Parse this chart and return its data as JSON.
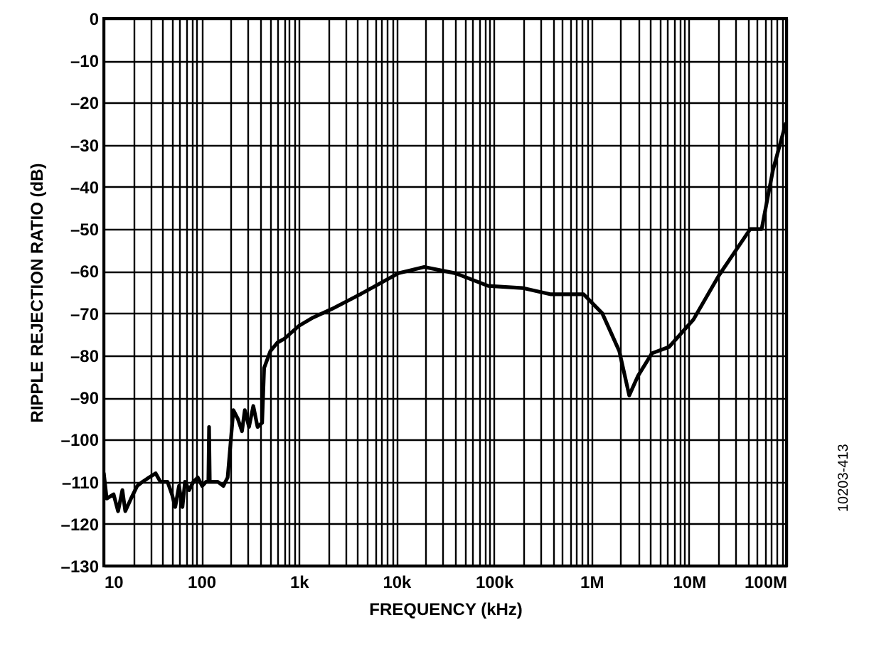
{
  "chart_data": {
    "type": "line",
    "xlabel": "FREQUENCY (kHz)",
    "ylabel": "RIPPLE REJECTION RATIO (dB)",
    "annotations": [
      "10203-413"
    ],
    "log": "x",
    "grid": true,
    "marker": "none",
    "line_style": "solid",
    "xlim": [
      10,
      100000000
    ],
    "ylim": [
      -130,
      0
    ],
    "xticks": [
      {
        "value": 10,
        "label": "10"
      },
      {
        "value": 20,
        "label": null
      },
      {
        "value": 30,
        "label": null
      },
      {
        "value": 40,
        "label": null
      },
      {
        "value": 50,
        "label": null
      },
      {
        "value": 60,
        "label": null
      },
      {
        "value": 70,
        "label": null
      },
      {
        "value": 80,
        "label": null
      },
      {
        "value": 90,
        "label": null
      },
      {
        "value": 100,
        "label": "100"
      },
      {
        "value": 200,
        "label": null
      },
      {
        "value": 300,
        "label": null
      },
      {
        "value": 400,
        "label": null
      },
      {
        "value": 500,
        "label": null
      },
      {
        "value": 600,
        "label": null
      },
      {
        "value": 700,
        "label": null
      },
      {
        "value": 800,
        "label": null
      },
      {
        "value": 900,
        "label": null
      },
      {
        "value": 1000,
        "label": "1k"
      },
      {
        "value": 2000,
        "label": null
      },
      {
        "value": 3000,
        "label": null
      },
      {
        "value": 4000,
        "label": null
      },
      {
        "value": 5000,
        "label": null
      },
      {
        "value": 6000,
        "label": null
      },
      {
        "value": 7000,
        "label": null
      },
      {
        "value": 8000,
        "label": null
      },
      {
        "value": 9000,
        "label": null
      },
      {
        "value": 10000,
        "label": "10k"
      },
      {
        "value": 20000,
        "label": null
      },
      {
        "value": 30000,
        "label": null
      },
      {
        "value": 40000,
        "label": null
      },
      {
        "value": 50000,
        "label": null
      },
      {
        "value": 60000,
        "label": null
      },
      {
        "value": 70000,
        "label": null
      },
      {
        "value": 80000,
        "label": null
      },
      {
        "value": 90000,
        "label": null
      },
      {
        "value": 100000,
        "label": "100k"
      },
      {
        "value": 200000,
        "label": null
      },
      {
        "value": 300000,
        "label": null
      },
      {
        "value": 400000,
        "label": null
      },
      {
        "value": 500000,
        "label": null
      },
      {
        "value": 600000,
        "label": null
      },
      {
        "value": 700000,
        "label": null
      },
      {
        "value": 800000,
        "label": null
      },
      {
        "value": 900000,
        "label": null
      },
      {
        "value": 1000000,
        "label": "1M"
      },
      {
        "value": 2000000,
        "label": null
      },
      {
        "value": 3000000,
        "label": null
      },
      {
        "value": 4000000,
        "label": null
      },
      {
        "value": 5000000,
        "label": null
      },
      {
        "value": 6000000,
        "label": null
      },
      {
        "value": 7000000,
        "label": null
      },
      {
        "value": 8000000,
        "label": null
      },
      {
        "value": 9000000,
        "label": null
      },
      {
        "value": 10000000,
        "label": "10M"
      },
      {
        "value": 20000000,
        "label": null
      },
      {
        "value": 30000000,
        "label": null
      },
      {
        "value": 40000000,
        "label": null
      },
      {
        "value": 50000000,
        "label": null
      },
      {
        "value": 60000000,
        "label": null
      },
      {
        "value": 70000000,
        "label": null
      },
      {
        "value": 80000000,
        "label": null
      },
      {
        "value": 90000000,
        "label": null
      },
      {
        "value": 100000000,
        "label": "100M"
      }
    ],
    "yticks": [
      {
        "value": 0,
        "label": "0"
      },
      {
        "value": -10,
        "label": "–10"
      },
      {
        "value": -20,
        "label": "–20"
      },
      {
        "value": -30,
        "label": "–30"
      },
      {
        "value": -40,
        "label": "–40"
      },
      {
        "value": -50,
        "label": "–50"
      },
      {
        "value": -60,
        "label": "–60"
      },
      {
        "value": -70,
        "label": "–70"
      },
      {
        "value": -80,
        "label": "–80"
      },
      {
        "value": -90,
        "label": "–90"
      },
      {
        "value": -100,
        "label": "–100"
      },
      {
        "value": -110,
        "label": "–110"
      },
      {
        "value": -120,
        "label": "–120"
      },
      {
        "value": -130,
        "label": "–130"
      }
    ],
    "series": [
      {
        "color": "#000000",
        "x": [
          10,
          10.7,
          12.6,
          14,
          15.5,
          16.6,
          19,
          22,
          25,
          29,
          34,
          38,
          45,
          50,
          54,
          59,
          64,
          68,
          75,
          83,
          92,
          102,
          112,
          118,
          120,
          122,
          129,
          147,
          168,
          186,
          213,
          236,
          261,
          279,
          308,
          341,
          377,
          420,
          440,
          510,
          600,
          714,
          1000,
          1400,
          2170,
          4250,
          10500,
          19300,
          40400,
          87500,
          196000,
          384000,
          752000,
          832000,
          1290000,
          1930000,
          2440000,
          2980000,
          4170000,
          6250000,
          11100000,
          20300000,
          42500000,
          55600000,
          72600000,
          98000000
        ],
        "values": [
          -108,
          -114,
          -113,
          -117,
          -112,
          -117,
          -114,
          -111,
          -110,
          -109,
          -108,
          -110,
          -110,
          -113,
          -116,
          -111,
          -116,
          -110,
          -112,
          -110,
          -109,
          -111,
          -110,
          -110,
          -97,
          -110,
          -110,
          -110,
          -111,
          -109,
          -93,
          -95,
          -98,
          -93,
          -97,
          -92,
          -97,
          -96,
          -83,
          -79,
          -77,
          -76,
          -73,
          -71,
          -69,
          -65.5,
          -60.5,
          -59,
          -60.5,
          -63.5,
          -64,
          -65.5,
          -65.5,
          -65.5,
          -70,
          -79,
          -89.5,
          -85,
          -79.5,
          -78,
          -71.5,
          -61,
          -50,
          -50,
          -36,
          -25
        ]
      }
    ]
  }
}
